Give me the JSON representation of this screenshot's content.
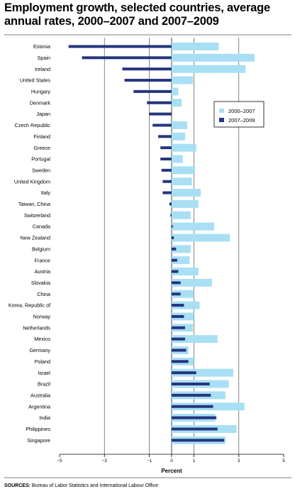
{
  "title": "Employment growth, selected countries, average annual rates, 2000–2007 and 2007–2009",
  "sources": {
    "label": "SOURCES:",
    "text": "Bureau of Labor Statistics and International Labour Office"
  },
  "colors": {
    "series_2000_2007": "#a8dff4",
    "series_2007_2009": "#25357e",
    "gridline": "#333333"
  },
  "chart_data": {
    "type": "bar",
    "orientation": "horizontal",
    "xlabel": "Percent",
    "ylabel": "",
    "xlim": [
      -5,
      5
    ],
    "xticks": [
      -5,
      -3,
      -1,
      0,
      1,
      3,
      5
    ],
    "grid": "vertical lines at -3, -1, 0, 1, 3",
    "legend_position": "right",
    "categories": [
      "Estonia",
      "Spain",
      "Ireland",
      "United States",
      "Hungary",
      "Denmark",
      "Japan",
      "Czech Republic",
      "Finland",
      "Greece",
      "Portugal",
      "Sweden",
      "United Kingdom",
      "Italy",
      "Taiwan, China",
      "Switzerland",
      "Canada",
      "New Zealand",
      "Belgium",
      "France",
      "Austria",
      "Slovakia",
      "China",
      "Korea, Republic of",
      "Norway",
      "Netherlands",
      "Mexico",
      "Germany",
      "Poland",
      "Israel",
      "Brazil",
      "Australia",
      "Argentina",
      "India",
      "Philippines",
      "Singapore"
    ],
    "series": [
      {
        "name": "2000–2007",
        "values": [
          2.1,
          3.7,
          3.3,
          0.95,
          0.3,
          0.45,
          0.0,
          0.7,
          0.6,
          1.1,
          0.5,
          1.05,
          0.9,
          1.3,
          1.2,
          0.85,
          1.9,
          2.6,
          0.85,
          0.8,
          1.2,
          1.8,
          1.0,
          1.25,
          1.0,
          0.95,
          2.05,
          0.75,
          1.0,
          2.75,
          2.55,
          2.4,
          3.25,
          1.95,
          2.9,
          2.4
        ]
      },
      {
        "name": "2007–2009",
        "values": [
          -4.6,
          -4.0,
          -2.2,
          -2.1,
          -1.7,
          -1.1,
          -1.0,
          -0.85,
          -0.6,
          -0.5,
          -0.5,
          -0.45,
          -0.4,
          -0.4,
          -0.1,
          -0.05,
          0.05,
          0.1,
          0.2,
          0.25,
          0.3,
          0.4,
          0.4,
          0.55,
          0.55,
          0.6,
          0.6,
          0.65,
          0.75,
          1.1,
          1.7,
          1.75,
          1.85,
          2.0,
          2.05,
          2.35
        ]
      }
    ]
  }
}
